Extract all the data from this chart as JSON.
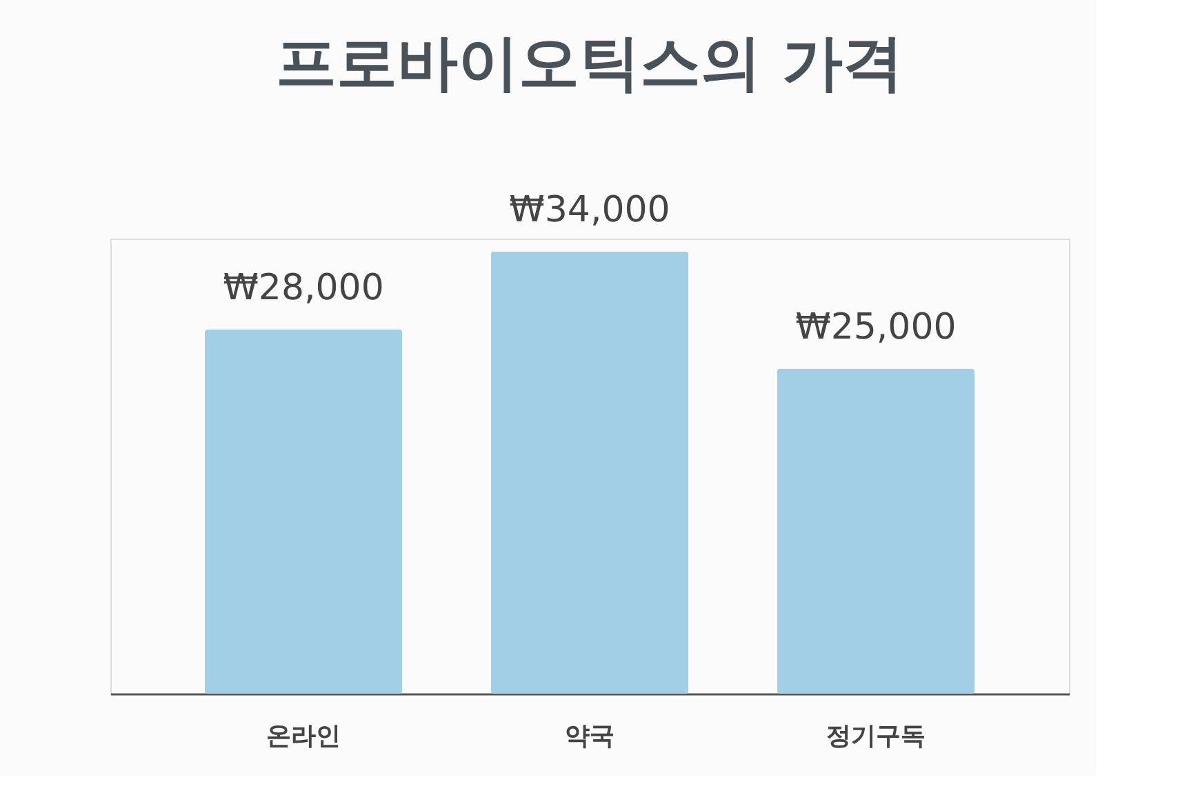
{
  "chart_data": {
    "type": "bar",
    "title": "프로바이오틱스의 가격",
    "categories": [
      "온라인",
      "약국",
      "정기구독"
    ],
    "values": [
      28000,
      34000,
      25000
    ],
    "value_labels": [
      "₩28,000",
      "₩34,000",
      "₩25,000"
    ],
    "color": "#a3cfe6",
    "grid": false
  }
}
